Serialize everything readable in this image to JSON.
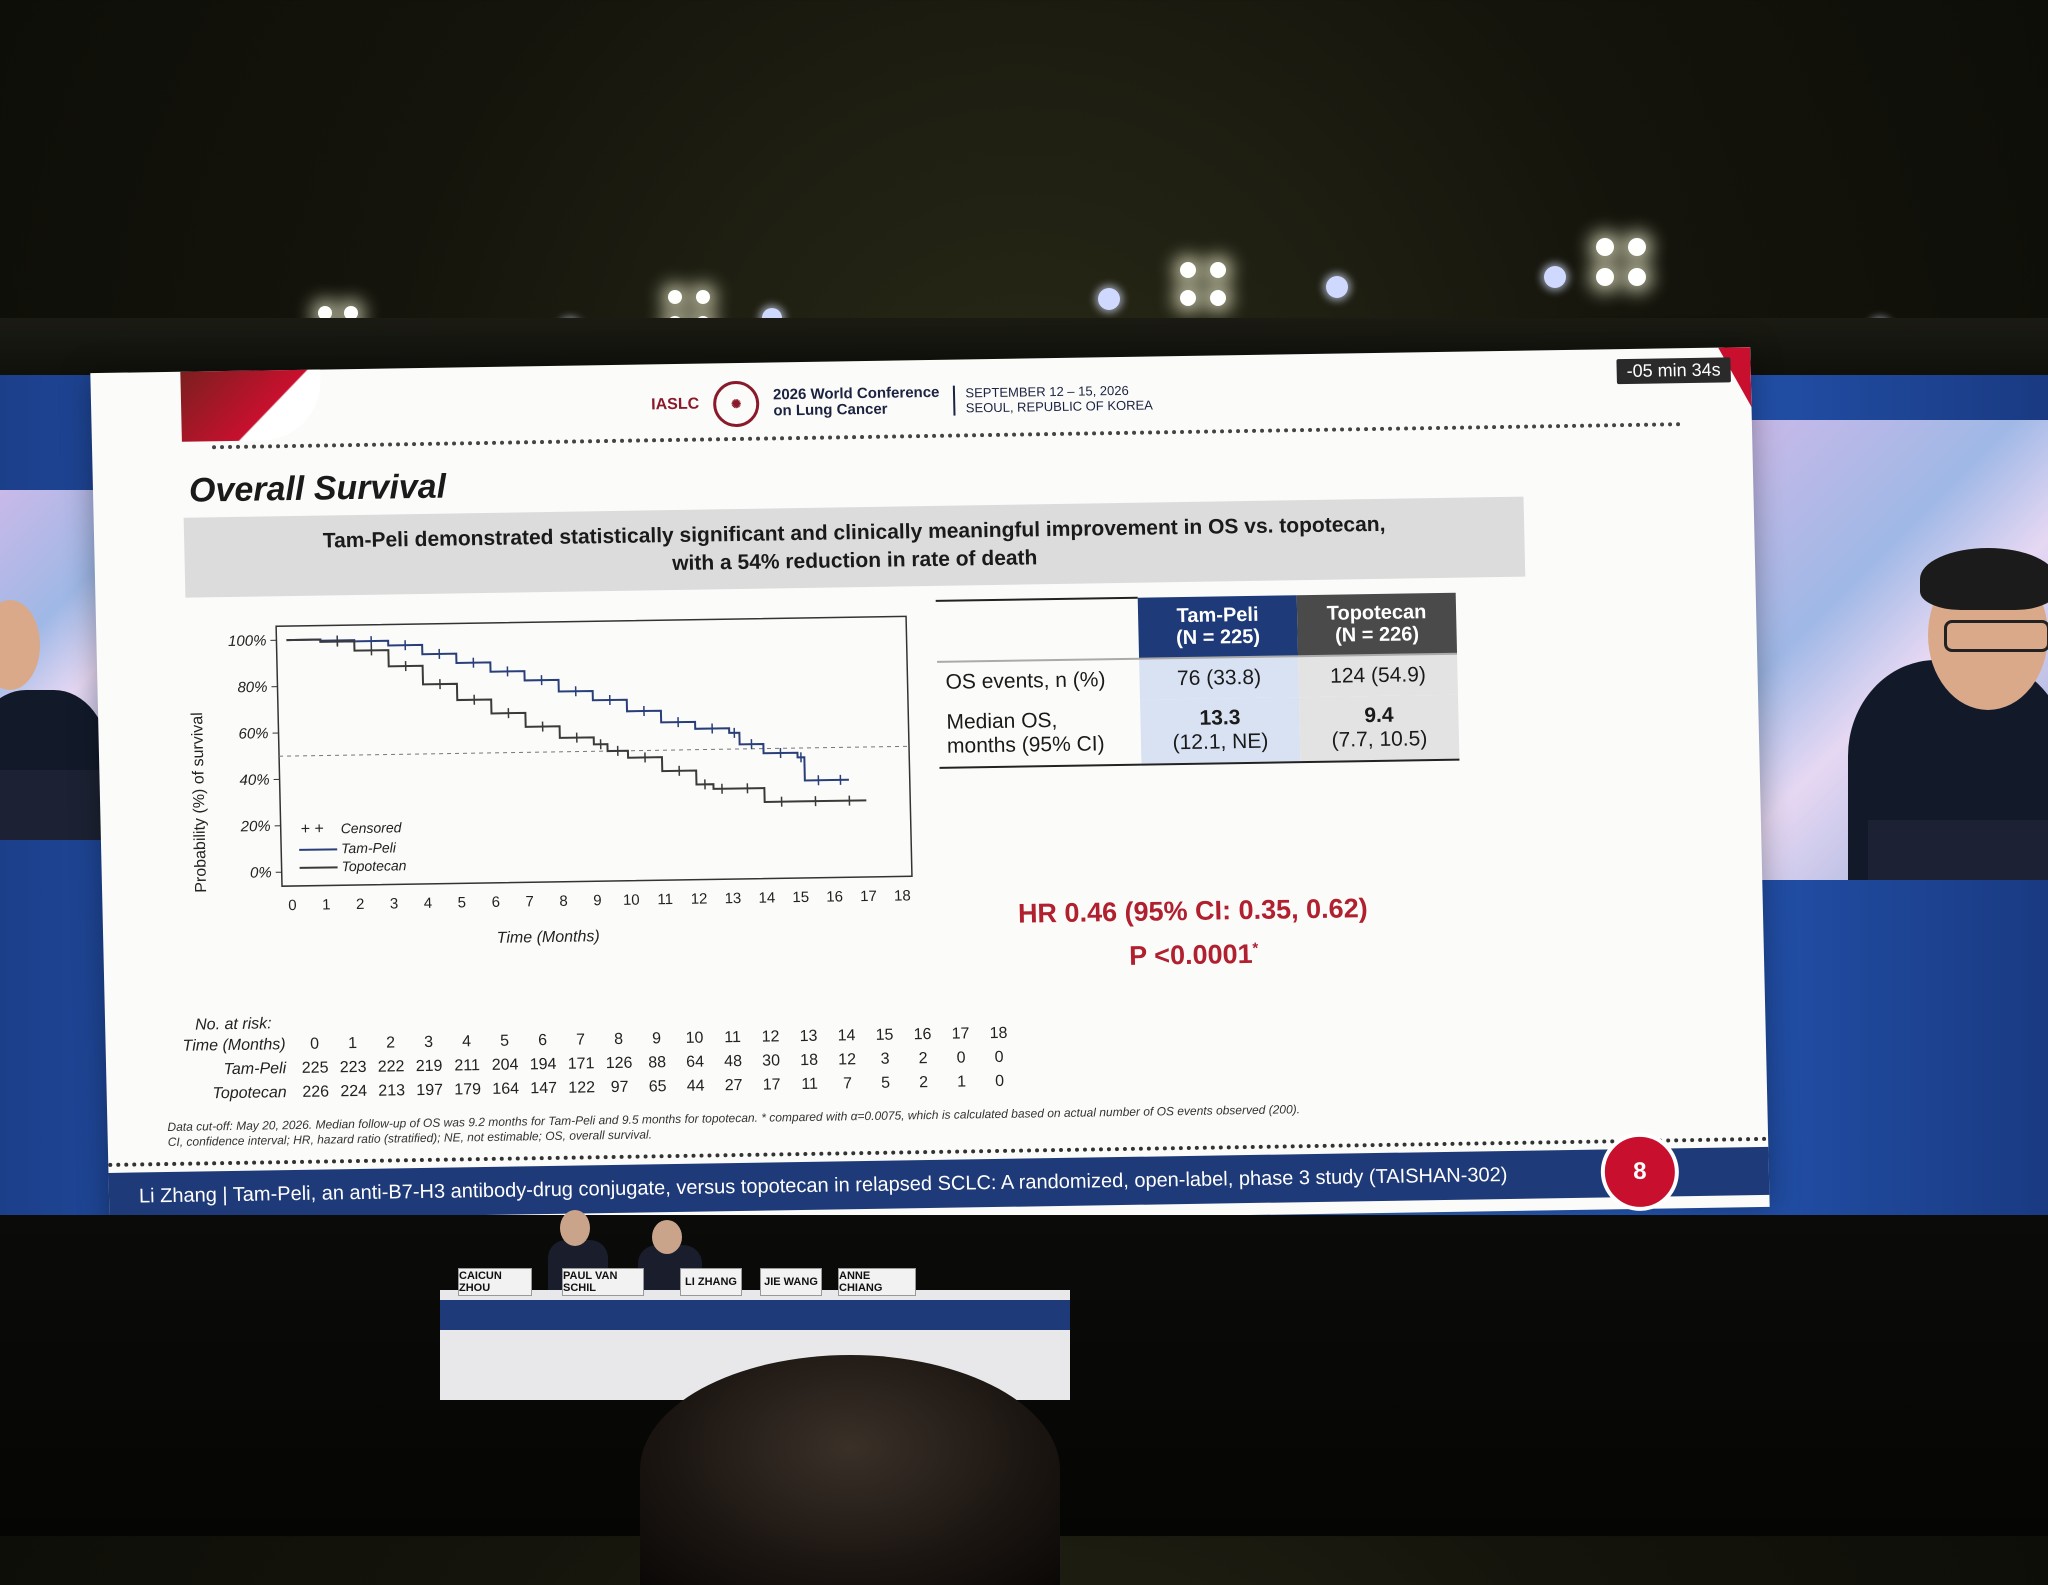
{
  "header": {
    "iaslc": "IASLC",
    "conference_name_line1": "2026 World Conference",
    "conference_name_line2": "on Lung Cancer",
    "date_line1": "SEPTEMBER 12 – 15, 2026",
    "date_line2": "SEOUL, REPUBLIC OF KOREA",
    "timer": "-05 min 34s"
  },
  "slide": {
    "title": "Overall Survival",
    "banner_line1": "Tam-Peli demonstrated statistically significant and clinically meaningful improvement in OS vs. topotecan,",
    "banner_line2": "with a 54% reduction in rate of death",
    "page_number": "8"
  },
  "chart_data": {
    "type": "line",
    "xlabel": "Time (Months)",
    "ylabel": "Probability (%) of survival",
    "x_ticks": [
      "0",
      "1",
      "2",
      "3",
      "4",
      "5",
      "6",
      "7",
      "8",
      "9",
      "10",
      "11",
      "12",
      "13",
      "14",
      "15",
      "16",
      "17",
      "18"
    ],
    "y_ticks": [
      "0%",
      "20%",
      "40%",
      "60%",
      "80%",
      "100%"
    ],
    "xlim": [
      0,
      18
    ],
    "ylim": [
      0,
      100
    ],
    "legend": [
      "Censored",
      "Tam-Peli",
      "Topotecan"
    ],
    "legend_markers": "+ +",
    "series": [
      {
        "name": "Tam-Peli",
        "x": [
          0,
          1,
          2,
          3,
          4,
          5,
          6,
          7,
          8,
          9,
          10,
          11,
          12,
          13,
          13.3,
          14,
          15,
          15.2,
          16,
          16.5
        ],
        "y": [
          100,
          99.5,
          99,
          97,
          93,
          89,
          85,
          81,
          76,
          72,
          67,
          62,
          59,
          57,
          52,
          48,
          46,
          36,
          36,
          36
        ]
      },
      {
        "name": "Topotecan",
        "x": [
          0,
          1,
          2,
          3,
          4,
          5,
          6,
          7,
          8,
          9,
          9.4,
          10,
          11,
          12,
          12.5,
          13,
          14,
          15,
          16,
          17
        ],
        "y": [
          100,
          99,
          95,
          88,
          80,
          73,
          67,
          61,
          56,
          53,
          50,
          47,
          41,
          35,
          33,
          33,
          27,
          27,
          27,
          27
        ]
      }
    ],
    "median_line_y": 50,
    "grid": false
  },
  "table": {
    "col1_header_line1": "Tam-Peli",
    "col1_header_line2": "(N = 225)",
    "col2_header_line1": "Topotecan",
    "col2_header_line2": "(N = 226)",
    "rows": [
      {
        "label": "OS events, n (%)",
        "label2": "",
        "c1a": "76 (33.8)",
        "c1b": "",
        "c2a": "124 (54.9)",
        "c2b": ""
      },
      {
        "label": "Median OS,",
        "label2": "months (95% CI)",
        "c1a": "13.3",
        "c1b": "(12.1, NE)",
        "c2a": "9.4",
        "c2b": "(7.7, 10.5)"
      }
    ]
  },
  "hr": "HR 0.46 (95% CI: 0.35, 0.62)",
  "pvalue": "P <0.0001",
  "pvalue_mark": "*",
  "risk": {
    "title": "No. at risk:",
    "time_label": "Time (Months)",
    "times": [
      "0",
      "1",
      "2",
      "3",
      "4",
      "5",
      "6",
      "7",
      "8",
      "9",
      "10",
      "11",
      "12",
      "13",
      "14",
      "15",
      "16",
      "17",
      "18"
    ],
    "tampeli_label": "Tam-Peli",
    "tampeli": [
      "225",
      "223",
      "222",
      "219",
      "211",
      "204",
      "194",
      "171",
      "126",
      "88",
      "64",
      "48",
      "30",
      "18",
      "12",
      "3",
      "2",
      "0",
      "0"
    ],
    "topotecan_label": "Topotecan",
    "topotecan": [
      "226",
      "224",
      "213",
      "197",
      "179",
      "164",
      "147",
      "122",
      "97",
      "65",
      "44",
      "27",
      "17",
      "11",
      "7",
      "5",
      "2",
      "1",
      "0"
    ]
  },
  "footnote_line1": "Data cut-off: May 20, 2026. Median follow-up of OS was 9.2 months for Tam-Peli and 9.5 months for topotecan. * compared with α=0.0075, which is calculated based on actual number of OS events observed (200).",
  "footnote_line2": "CI, confidence interval; HR, hazard ratio (stratified); NE, not estimable; OS, overall survival.",
  "bottom_bar": "Li Zhang  |  Tam-Peli, an anti-B7-H3 antibody-drug conjugate, versus topotecan in relapsed SCLC: A randomized, open-label, phase 3 study (TAISHAN-302)",
  "nameplates": [
    "CAICUN ZHOU",
    "PAUL VAN SCHIL",
    "LI ZHANG",
    "JIE WANG",
    "ANNE CHIANG"
  ],
  "colors": {
    "tampeli": "#2a3f7a",
    "topotecan": "#3a3a3a",
    "accent": "#c8102e",
    "navy": "#1f3a78"
  }
}
